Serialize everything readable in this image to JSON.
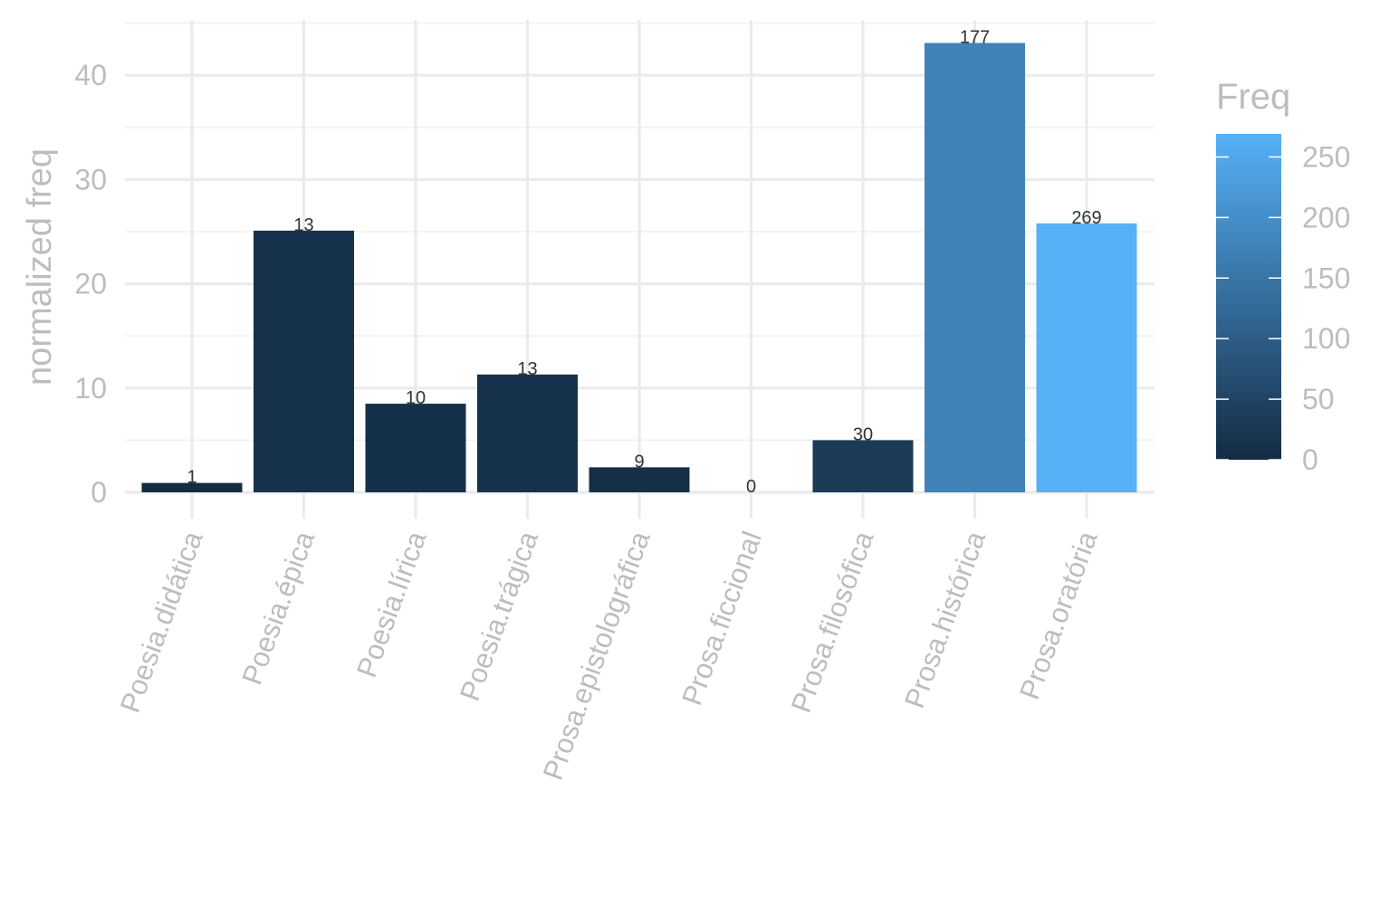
{
  "chart_data": {
    "type": "bar",
    "title": "",
    "xlabel": "",
    "ylabel": "normalized freq",
    "categories": [
      "Poesia.didática",
      "Poesia.épica",
      "Poesia.lírica",
      "Poesia.trágica",
      "Prosa.epistolográfica",
      "Prosa.ficcional",
      "Prosa.filosófica",
      "Prosa.histórica",
      "Prosa.oratória"
    ],
    "values": [
      0.9,
      25.1,
      8.5,
      11.3,
      2.4,
      0.0,
      5.0,
      43.1,
      25.8
    ],
    "fill_values": [
      1,
      13,
      10,
      13,
      9,
      0,
      30,
      177,
      269
    ],
    "data_labels": [
      "1",
      "13",
      "10",
      "13",
      "9",
      "0",
      "30",
      "177",
      "269"
    ],
    "ylim": [
      0,
      45
    ],
    "yticks": [
      0,
      10,
      20,
      30,
      40
    ],
    "ytick_labels": [
      "0",
      "10",
      "20",
      "30",
      "40"
    ],
    "grid": true,
    "legend": {
      "title": "Freq",
      "placement": "right",
      "type": "colorbar",
      "range": [
        0,
        269
      ],
      "ticks": [
        0,
        50,
        100,
        150,
        200,
        250
      ],
      "tick_labels": [
        "0",
        "50",
        "100",
        "150",
        "200",
        "250"
      ],
      "color_low": "#132B43",
      "color_high": "#56B1F7"
    }
  }
}
